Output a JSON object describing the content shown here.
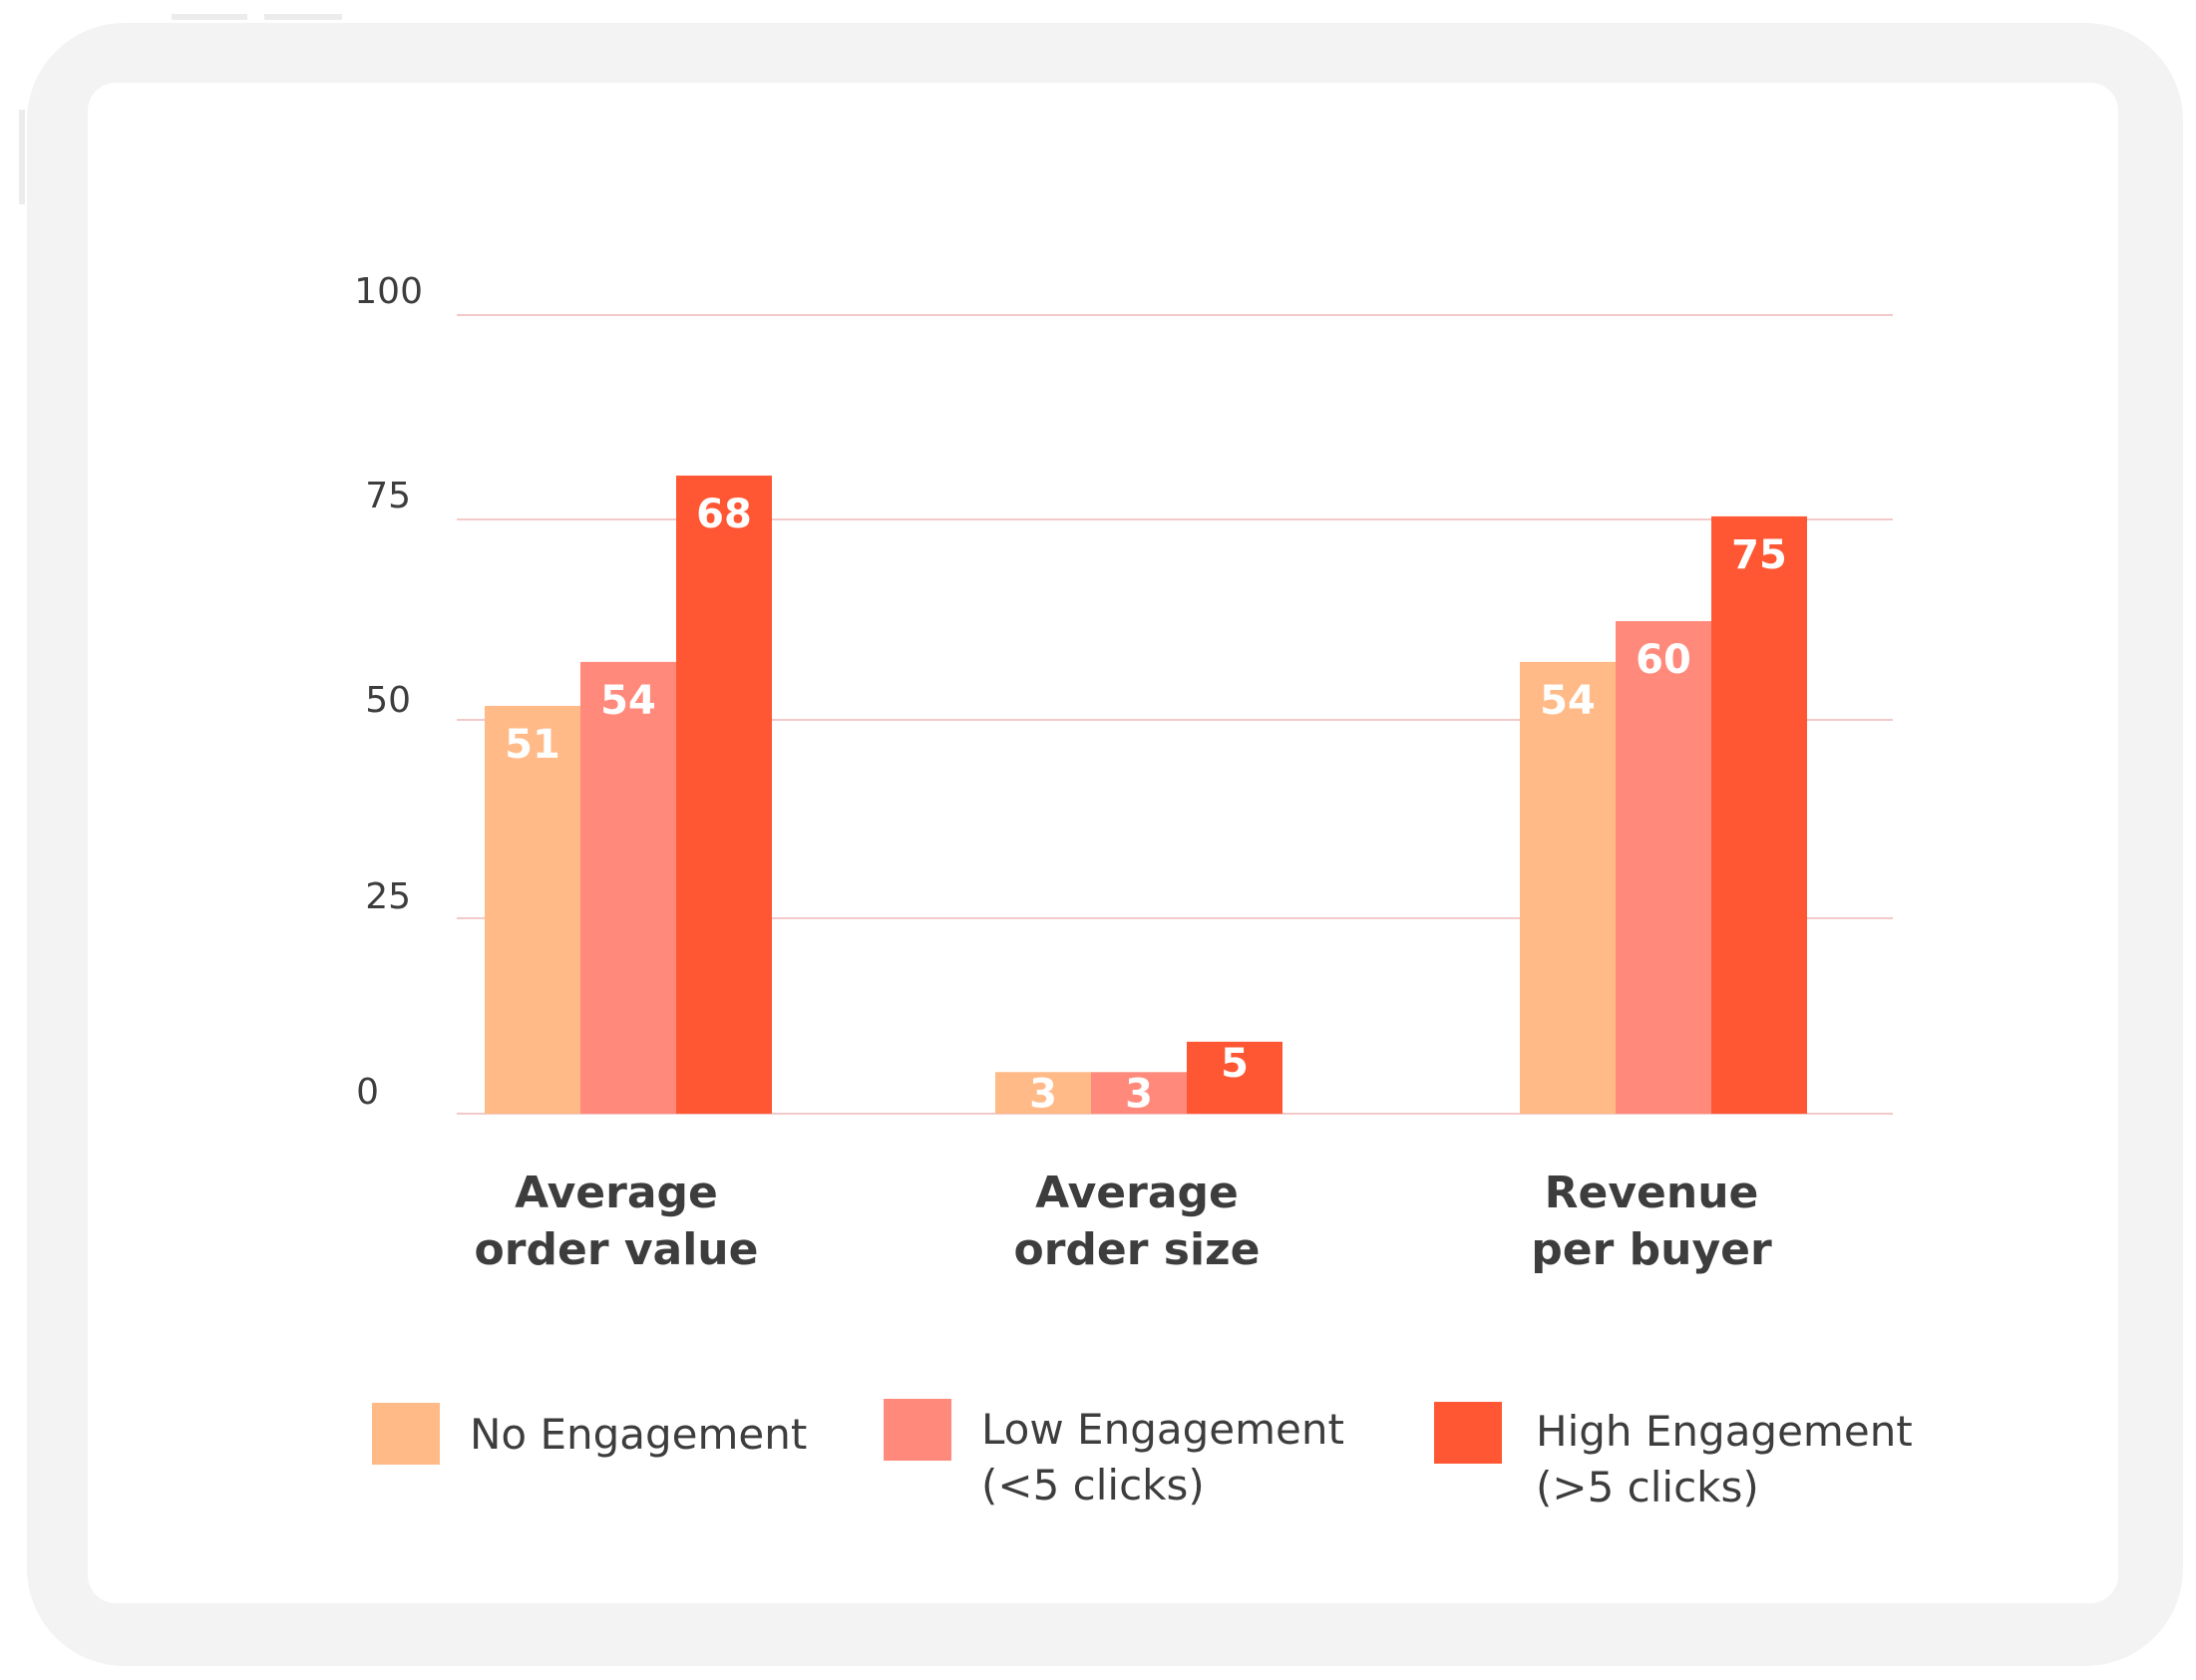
{
  "colors": {
    "frame": "#f3f3f3",
    "card": "#ffffff",
    "grid": "#f4c9c9",
    "tick_text": "#3d3d3d",
    "category_text": "#3d3d3d",
    "value_text": "#ffffff",
    "legend_text": "#3d3d3d"
  },
  "chart_data": {
    "type": "bar",
    "categories": [
      [
        "Average",
        "order value"
      ],
      [
        "Average",
        "order size"
      ],
      [
        "Revenue",
        "per buyer"
      ]
    ],
    "series": [
      {
        "name": [
          "No Engagement"
        ],
        "values": [
          51,
          3,
          54
        ],
        "color": "#ffba87"
      },
      {
        "name": [
          "Low Engagement",
          "(<5 clicks)"
        ],
        "values": [
          54,
          3,
          60
        ],
        "color": "#ff8a7c"
      },
      {
        "name": [
          "High Engagement",
          "(>5 clicks)"
        ],
        "values": [
          68,
          5,
          75
        ],
        "color": "#ff5733"
      }
    ],
    "bar_heights": [
      [
        51,
        5.2,
        56.5
      ],
      [
        56.5,
        5.2,
        61.6
      ],
      [
        79.8,
        9,
        74.7
      ]
    ],
    "yticks": [
      {
        "label": "100",
        "value": 100
      },
      {
        "label": "75",
        "value": 75
      },
      {
        "label": "50",
        "value": 50
      },
      {
        "label": "25",
        "value": 25
      },
      {
        "label": "0",
        "value": 0
      }
    ],
    "ylim": [
      0,
      100
    ],
    "grid": true,
    "legend_position": "bottom"
  }
}
